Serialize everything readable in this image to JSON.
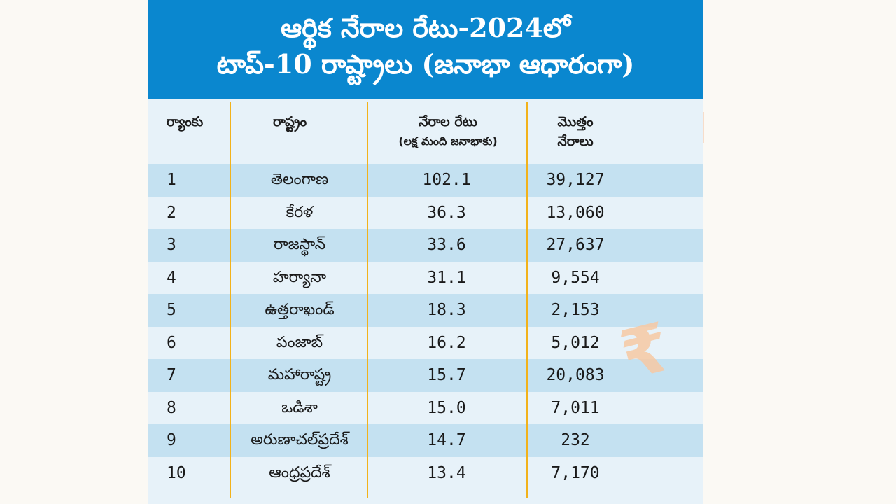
{
  "title": {
    "line1": "ఆర్థిక నేరాల రేటు-2024లో",
    "line2": "టాప్-10 రాష్ట్రాలు (జనాభా ఆధారంగా)"
  },
  "columns": {
    "rank": "ర్యాంకు",
    "state": "రాష్ట్రం",
    "rate": "నేరాల రేటు",
    "rate_sub": "(లక్ష మంది జనాభాకు)",
    "total_line1": "మొత్తం",
    "total_line2": "నేరాలు"
  },
  "rows": [
    {
      "rank": "1",
      "state": "తెలంగాణ",
      "rate": "102.1",
      "total": "39,127"
    },
    {
      "rank": "2",
      "state": "కేరళ",
      "rate": "36.3",
      "total": "13,060"
    },
    {
      "rank": "3",
      "state": "రాజస్థాన్",
      "rate": "33.6",
      "total": "27,637"
    },
    {
      "rank": "4",
      "state": "హర్యానా",
      "rate": "31.1",
      "total": "9,554"
    },
    {
      "rank": "5",
      "state": "ఉత్తరాఖండ్",
      "rate": "18.3",
      "total": "2,153"
    },
    {
      "rank": "6",
      "state": "పంజాబ్",
      "rate": "16.2",
      "total": "5,012"
    },
    {
      "rank": "7",
      "state": "మహారాష్ట్ర",
      "rate": "15.7",
      "total": "20,083"
    },
    {
      "rank": "8",
      "state": "ఒడిశా",
      "rate": "15.0",
      "total": "7,011"
    },
    {
      "rank": "9",
      "state": "అరుణాచల్‌ప్రదేశ్",
      "rate": "14.7",
      "total": "232"
    },
    {
      "rank": "10",
      "state": "ఆంధ్రప్రదేశ్",
      "rate": "13.4",
      "total": "7,170"
    }
  ],
  "decor": {
    "watermark_icon": "rupee-icon",
    "watermark_glyph": "₹",
    "header_color": "#0a87cf",
    "divider_color": "#f2b21b",
    "row_alt_color": "#c4e1f1",
    "row_base_color": "#e7f2f9"
  }
}
